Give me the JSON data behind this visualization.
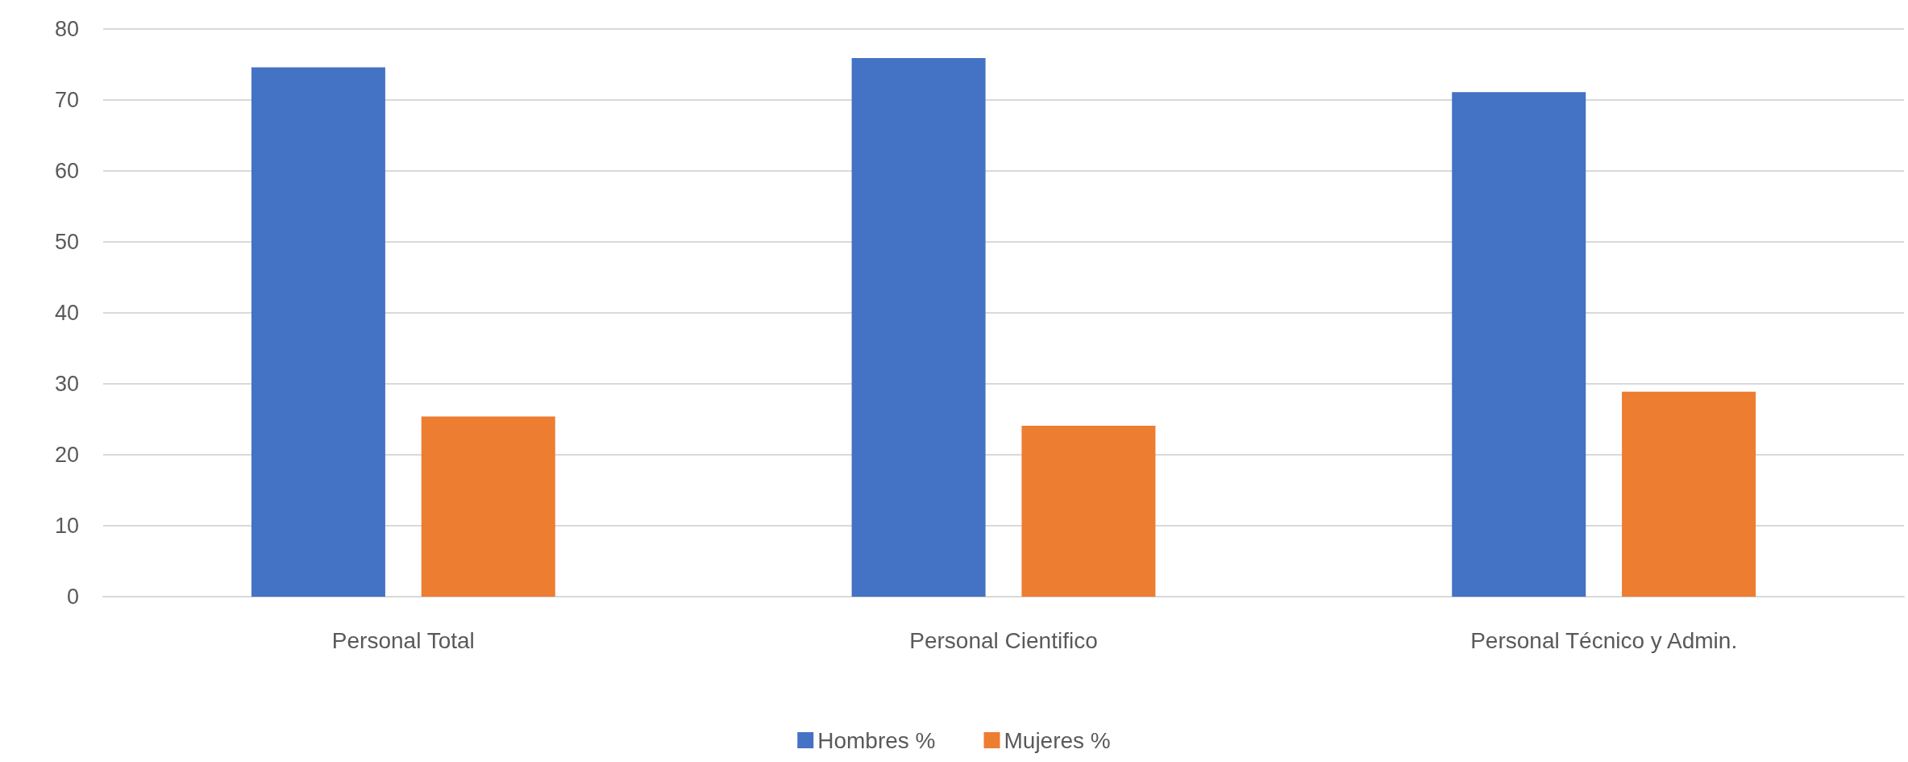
{
  "chart_data": {
    "type": "bar",
    "categories": [
      "Personal Total",
      "Personal Cientifico",
      "Personal Técnico y Admin."
    ],
    "series": [
      {
        "name": "Hombres %",
        "color": "#4472c4",
        "values": [
          74.6,
          75.9,
          71.1
        ]
      },
      {
        "name": "Mujeres %",
        "color": "#ed7d31",
        "values": [
          25.4,
          24.1,
          28.9
        ]
      }
    ],
    "ylim": [
      0,
      80
    ],
    "yticks": [
      0,
      10,
      20,
      30,
      40,
      50,
      60,
      70,
      80
    ],
    "grid": "y",
    "legend": "bottom"
  }
}
